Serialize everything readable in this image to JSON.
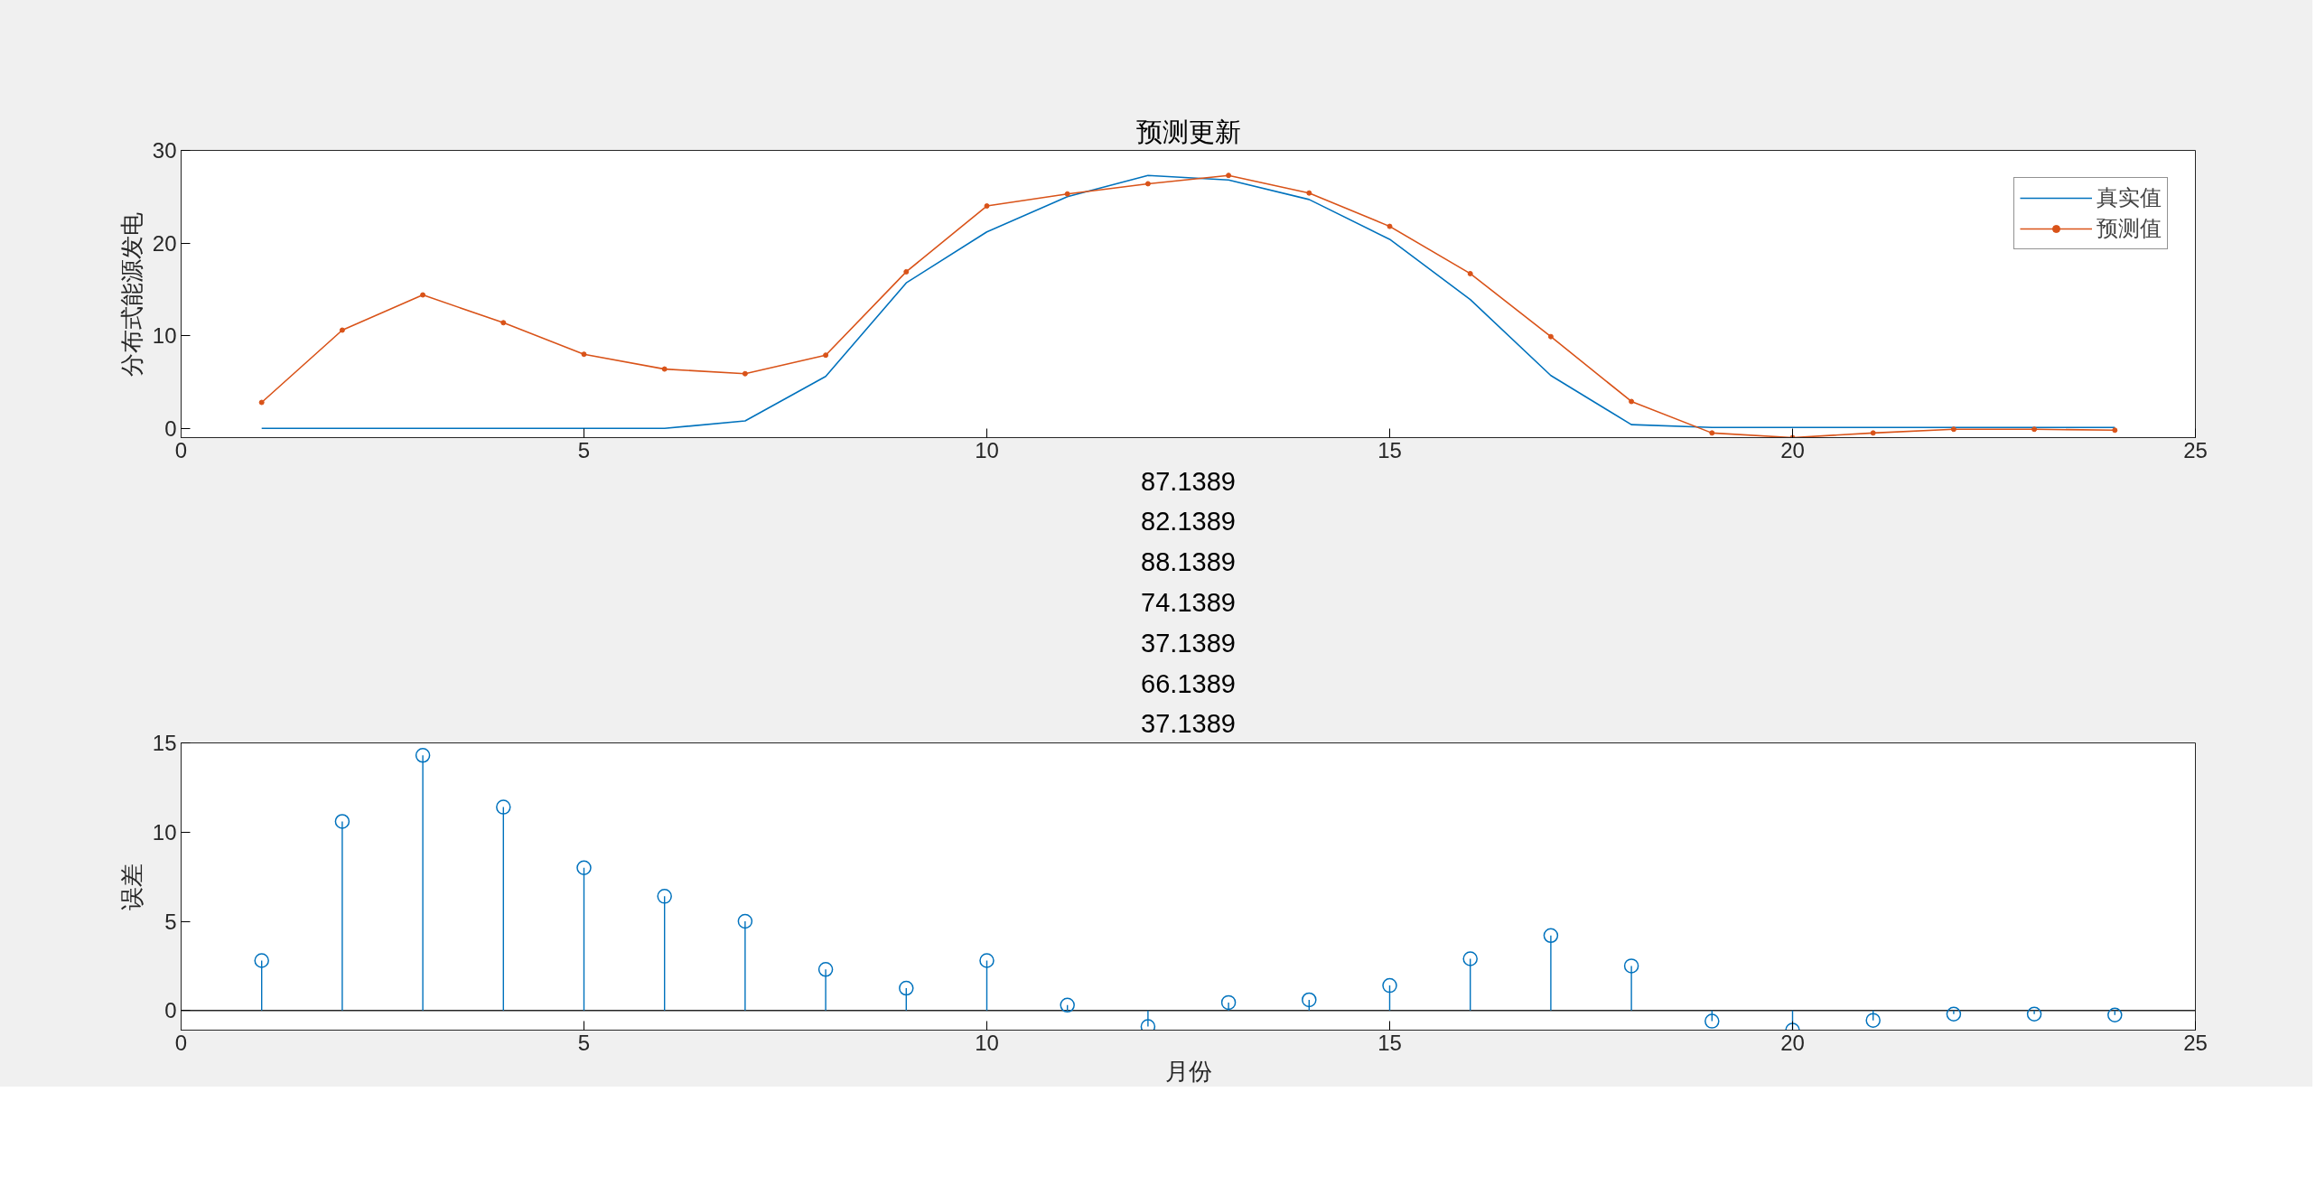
{
  "chart_data": [
    {
      "type": "line",
      "title": "预测更新",
      "ylabel": "分布式能源发电",
      "x": [
        1,
        2,
        3,
        4,
        5,
        6,
        7,
        8,
        9,
        10,
        11,
        12,
        13,
        14,
        15,
        16,
        17,
        18,
        19,
        20,
        21,
        22,
        23,
        24
      ],
      "xlim": [
        0,
        25
      ],
      "xticks": [
        0,
        5,
        10,
        15,
        20,
        25
      ],
      "ylim": [
        -1,
        30
      ],
      "yticks": [
        0,
        10,
        20,
        30
      ],
      "grid": false,
      "legend": "top right",
      "series": [
        {
          "name": "真实值",
          "color": "#0072bd",
          "marker": "none",
          "values": [
            0,
            0,
            0,
            0,
            0,
            0,
            0.8,
            5.6,
            15.7,
            21.2,
            25,
            27.3,
            26.8,
            24.7,
            20.4,
            13.9,
            5.7,
            0.4,
            0.1,
            0.1,
            0.1,
            0.1,
            0.1,
            0.1
          ]
        },
        {
          "name": "预测值",
          "color": "#d95319",
          "marker": "circle",
          "values": [
            2.8,
            10.6,
            14.4,
            11.4,
            8.0,
            6.4,
            5.9,
            7.9,
            16.9,
            24,
            25.3,
            26.4,
            27.3,
            25.4,
            21.8,
            16.7,
            9.9,
            2.9,
            -0.5,
            -1.0,
            -0.5,
            -0.1,
            -0.1,
            -0.2
          ]
        }
      ]
    },
    {
      "type": "lollipop",
      "title": "87.1389\n82.1389\n88.1389\n74.1389\n37.1389\n66.1389\n37.1389",
      "xlabel": "月份",
      "ylabel": "误差",
      "x": [
        1,
        2,
        3,
        4,
        5,
        6,
        7,
        8,
        9,
        10,
        11,
        12,
        13,
        14,
        15,
        16,
        17,
        18,
        19,
        20,
        21,
        22,
        23,
        24
      ],
      "xlim": [
        0,
        25
      ],
      "xticks": [
        0,
        5,
        10,
        15,
        20,
        25
      ],
      "ylim": [
        -1.1,
        15
      ],
      "yticks": [
        0,
        5,
        10,
        15
      ],
      "grid": false,
      "legend": false,
      "marker": "circle",
      "ref_lines": [
        {
          "axis": "y",
          "value": 0,
          "color": "#262626"
        }
      ],
      "series": [
        {
          "color": "#0072bd",
          "values": [
            2.8,
            10.6,
            14.3,
            11.4,
            8.0,
            6.4,
            5.0,
            2.3,
            1.25,
            2.8,
            0.3,
            -0.9,
            0.45,
            0.6,
            1.4,
            2.9,
            4.2,
            2.5,
            -0.6,
            -1.1,
            -0.55,
            -0.2,
            -0.2,
            -0.25
          ]
        }
      ]
    }
  ]
}
